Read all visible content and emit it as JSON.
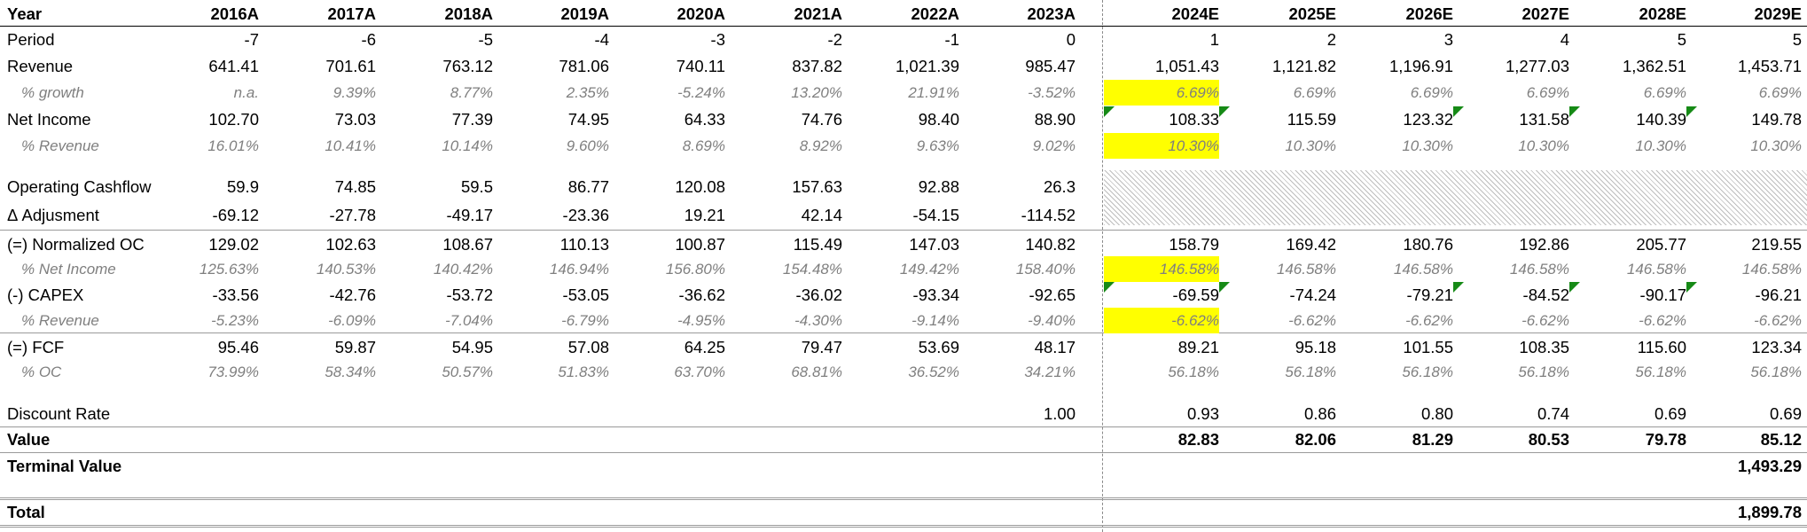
{
  "sheet": {
    "header": {
      "label": "Year",
      "years": [
        "2016A",
        "2017A",
        "2018A",
        "2019A",
        "2020A",
        "2021A",
        "2022A",
        "2023A",
        "2024E",
        "2025E",
        "2026E",
        "2027E",
        "2028E",
        "2029E"
      ]
    },
    "period": {
      "label": "Period",
      "values": [
        "-7",
        "-6",
        "-5",
        "-4",
        "-3",
        "-2",
        "-1",
        "0",
        "1",
        "2",
        "3",
        "4",
        "5",
        "5"
      ]
    },
    "revenue": {
      "label": "Revenue",
      "values": [
        "641.41",
        "701.61",
        "763.12",
        "781.06",
        "740.11",
        "837.82",
        "1,021.39",
        "985.47",
        "1,051.43",
        "1,121.82",
        "1,196.91",
        "1,277.03",
        "1,362.51",
        "1,453.71"
      ]
    },
    "revenue_growth": {
      "label": "% growth",
      "values": [
        "n.a.",
        "9.39%",
        "8.77%",
        "2.35%",
        "-5.24%",
        "13.20%",
        "21.91%",
        "-3.52%",
        "6.69%",
        "6.69%",
        "6.69%",
        "6.69%",
        "6.69%",
        "6.69%"
      ]
    },
    "net_income": {
      "label": "Net Income",
      "values": [
        "102.70",
        "73.03",
        "77.39",
        "74.95",
        "64.33",
        "74.76",
        "98.40",
        "88.90",
        "108.33",
        "115.59",
        "123.32",
        "131.58",
        "140.39",
        "149.78"
      ]
    },
    "net_income_pct_revenue": {
      "label": "% Revenue",
      "values": [
        "16.01%",
        "10.41%",
        "10.14%",
        "9.60%",
        "8.69%",
        "8.92%",
        "9.63%",
        "9.02%",
        "10.30%",
        "10.30%",
        "10.30%",
        "10.30%",
        "10.30%",
        "10.30%"
      ]
    },
    "operating_cashflow": {
      "label": "Operating Cashflow",
      "values": [
        "59.9",
        "74.85",
        "59.5",
        "86.77",
        "120.08",
        "157.63",
        "92.88",
        "26.3"
      ]
    },
    "adjustment": {
      "label": "Δ Adjusment",
      "values": [
        "-69.12",
        "-27.78",
        "-49.17",
        "-23.36",
        "19.21",
        "42.14",
        "-54.15",
        "-114.52"
      ]
    },
    "normalized_oc": {
      "label": "(=) Normalized OC",
      "values": [
        "129.02",
        "102.63",
        "108.67",
        "110.13",
        "100.87",
        "115.49",
        "147.03",
        "140.82",
        "158.79",
        "169.42",
        "180.76",
        "192.86",
        "205.77",
        "219.55"
      ]
    },
    "oc_pct_net_income": {
      "label": "% Net Income",
      "values": [
        "125.63%",
        "140.53%",
        "140.42%",
        "146.94%",
        "156.80%",
        "154.48%",
        "149.42%",
        "158.40%",
        "146.58%",
        "146.58%",
        "146.58%",
        "146.58%",
        "146.58%",
        "146.58%"
      ]
    },
    "capex": {
      "label": "(-) CAPEX",
      "values": [
        "-33.56",
        "-42.76",
        "-53.72",
        "-53.05",
        "-36.62",
        "-36.02",
        "-93.34",
        "-92.65",
        "-69.59",
        "-74.24",
        "-79.21",
        "-84.52",
        "-90.17",
        "-96.21"
      ]
    },
    "capex_pct_revenue": {
      "label": "% Revenue",
      "values": [
        "-5.23%",
        "-6.09%",
        "-7.04%",
        "-6.79%",
        "-4.95%",
        "-4.30%",
        "-9.14%",
        "-9.40%",
        "-6.62%",
        "-6.62%",
        "-6.62%",
        "-6.62%",
        "-6.62%",
        "-6.62%"
      ]
    },
    "fcf": {
      "label": "(=) FCF",
      "values": [
        "95.46",
        "59.87",
        "54.95",
        "57.08",
        "64.25",
        "79.47",
        "53.69",
        "48.17",
        "89.21",
        "95.18",
        "101.55",
        "108.35",
        "115.60",
        "123.34"
      ]
    },
    "fcf_pct_oc": {
      "label": "% OC",
      "values": [
        "73.99%",
        "58.34%",
        "50.57%",
        "51.83%",
        "63.70%",
        "68.81%",
        "36.52%",
        "34.21%",
        "56.18%",
        "56.18%",
        "56.18%",
        "56.18%",
        "56.18%",
        "56.18%"
      ]
    },
    "discount_rate": {
      "label": "Discount Rate",
      "values": [
        "",
        "",
        "",
        "",
        "",
        "",
        "",
        "1.00",
        "0.93",
        "0.86",
        "0.80",
        "0.74",
        "0.69",
        "0.69"
      ]
    },
    "value": {
      "label": "Value",
      "values": [
        "",
        "",
        "",
        "",
        "",
        "",
        "",
        "",
        "82.83",
        "82.06",
        "81.29",
        "80.53",
        "79.78",
        "85.12"
      ]
    },
    "terminal_value": {
      "label": "Terminal Value",
      "values": [
        "",
        "",
        "",
        "",
        "",
        "",
        "",
        "",
        "",
        "",
        "",
        "",
        "",
        "1,493.29"
      ]
    },
    "total": {
      "label": "Total",
      "values": [
        "",
        "",
        "",
        "",
        "",
        "",
        "",
        "",
        "",
        "",
        "",
        "",
        "",
        "1,899.78"
      ]
    }
  },
  "colors": {
    "input_highlight": "#ffff00",
    "comment_flag": "#168a16",
    "subtext": "#7f7f7f"
  }
}
